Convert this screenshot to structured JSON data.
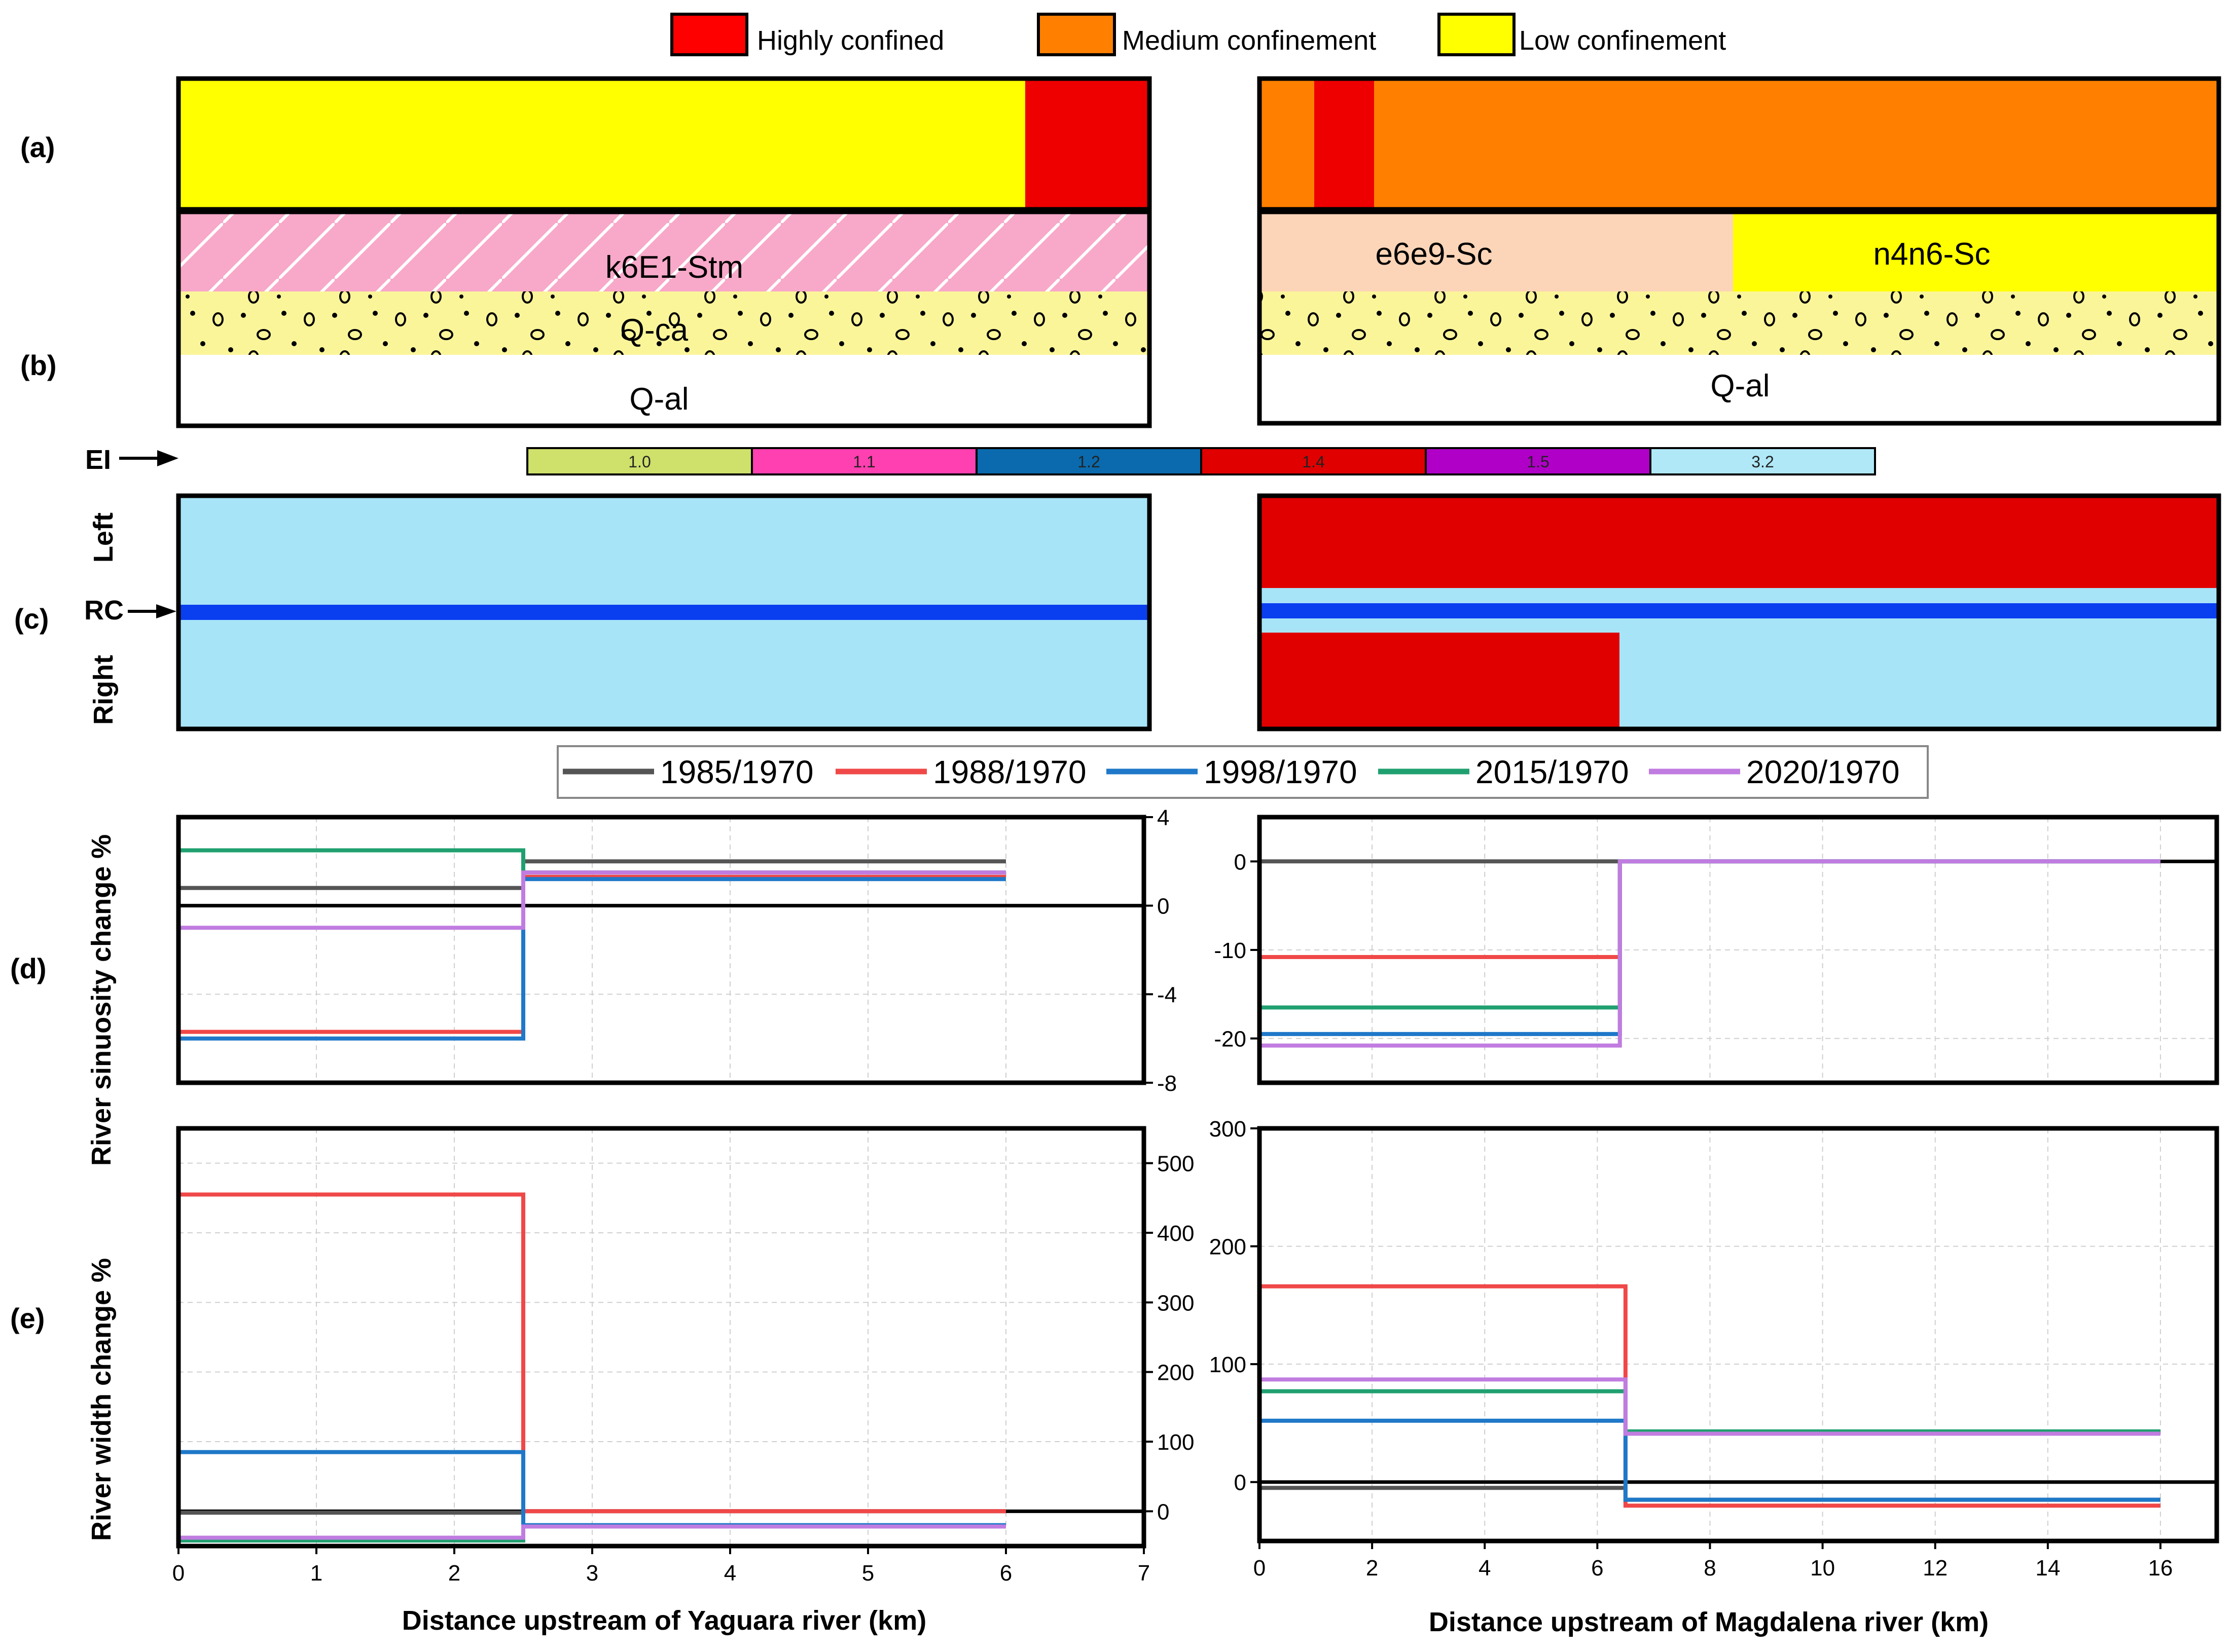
{
  "legend_top": {
    "items": [
      {
        "label": "Highly confined",
        "color": "#ff0000"
      },
      {
        "label": "Medium confinement",
        "color": "#ff8000"
      },
      {
        "label": "Low confinement",
        "color": "#ffff00"
      }
    ]
  },
  "panel_labels": {
    "a": "(a)",
    "b": "(b)",
    "c": "(c)",
    "d": "(d)",
    "e": "(e)"
  },
  "geology": {
    "left": {
      "upper": "k6E1-Stm",
      "middle": "Q-ca",
      "lower": "Q-al"
    },
    "right": {
      "upper_a": "e6e9-Sc",
      "upper_b": "n4n6-Sc",
      "lower": "Q-al"
    }
  },
  "ei": {
    "label": "EI",
    "items": [
      {
        "value": "1.0",
        "color": "#cfe06b"
      },
      {
        "value": "1.1",
        "color": "#ff40b0"
      },
      {
        "value": "1.2",
        "color": "#0a6aad"
      },
      {
        "value": "1.4",
        "color": "#e00000"
      },
      {
        "value": "1.5",
        "color": "#b000c8"
      },
      {
        "value": "3.2",
        "color": "#b0e8f8"
      }
    ]
  },
  "rc": {
    "label": "RC",
    "left": "Left",
    "right": "Right"
  },
  "colors": {
    "highly": "#ee0000",
    "medium": "#ff8000",
    "low": "#ffff00",
    "pink": "#f8a8c8",
    "sandy": "#fbf59a",
    "peach": "#fcd5b8",
    "lightblue": "#a8e4f8",
    "rcblue": "#0a3ff0",
    "rcred": "#e00000"
  },
  "series_legend": [
    {
      "name": "1985/1970",
      "color": "#555555"
    },
    {
      "name": "1988/1970",
      "color": "#f04848"
    },
    {
      "name": "1998/1970",
      "color": "#1f78c8"
    },
    {
      "name": "2015/1970",
      "color": "#20a070"
    },
    {
      "name": "2020/1970",
      "color": "#c07ce0"
    }
  ],
  "axis_titles": {
    "sinuosity": "River sinuosity change %",
    "width": "River width change %",
    "x_left": "Distance upstream of Yaguara river (km)",
    "x_right": "Distance upstream of Magdalena river (km)"
  },
  "chart_data": [
    {
      "id": "d-left",
      "type": "line",
      "step": true,
      "xlim": [
        0,
        7
      ],
      "ylim": [
        -8,
        4
      ],
      "yticks": [
        -8,
        -4,
        0,
        4
      ],
      "xticks": [],
      "series": [
        {
          "name": "1985/1970",
          "x": [
            0,
            2.5,
            2.5,
            6
          ],
          "y": [
            0.8,
            0.8,
            2,
            2
          ]
        },
        {
          "name": "1988/1970",
          "x": [
            0,
            2.5,
            2.5,
            6
          ],
          "y": [
            -5.7,
            -5.7,
            1.3,
            1.3
          ]
        },
        {
          "name": "1998/1970",
          "x": [
            0,
            2.5,
            2.5,
            6
          ],
          "y": [
            -6,
            -6,
            1.2,
            1.2
          ]
        },
        {
          "name": "2015/1970",
          "x": [
            0,
            2.5,
            2.5,
            6
          ],
          "y": [
            2.5,
            2.5,
            1.5,
            1.5
          ]
        },
        {
          "name": "2020/1970",
          "x": [
            0,
            2.5,
            2.5,
            6
          ],
          "y": [
            -1,
            -1,
            1.5,
            1.5
          ]
        }
      ]
    },
    {
      "id": "d-right",
      "type": "line",
      "step": true,
      "xlim": [
        0,
        17
      ],
      "ylim": [
        -25,
        5
      ],
      "yticks": [
        -20,
        -10,
        0
      ],
      "xticks": [],
      "series": [
        {
          "name": "1985/1970",
          "x": [
            0,
            16
          ],
          "y": [
            0,
            0
          ]
        },
        {
          "name": "1988/1970",
          "x": [
            0,
            6.4,
            6.4,
            16
          ],
          "y": [
            -10.8,
            -10.8,
            0,
            0
          ]
        },
        {
          "name": "1998/1970",
          "x": [
            0,
            6.4,
            6.4,
            16
          ],
          "y": [
            -19.5,
            -19.5,
            0,
            0
          ]
        },
        {
          "name": "2015/1970",
          "x": [
            0,
            6.4,
            6.4,
            16
          ],
          "y": [
            -16.5,
            -16.5,
            0,
            0
          ]
        },
        {
          "name": "2020/1970",
          "x": [
            0,
            6.4,
            6.4,
            16
          ],
          "y": [
            -20.8,
            -20.8,
            0,
            0
          ]
        }
      ]
    },
    {
      "id": "e-left",
      "type": "line",
      "step": true,
      "xlim": [
        0,
        7
      ],
      "ylim": [
        -50,
        550
      ],
      "yticks": [
        0,
        100,
        200,
        300,
        400,
        500
      ],
      "xticks": [
        0,
        1,
        2,
        3,
        4,
        5,
        6,
        7
      ],
      "series": [
        {
          "name": "1985/1970",
          "x": [
            0,
            2.5,
            2.5,
            6
          ],
          "y": [
            -2,
            -2,
            0,
            0
          ]
        },
        {
          "name": "1988/1970",
          "x": [
            0,
            2.5,
            2.5,
            6
          ],
          "y": [
            455,
            455,
            0,
            0
          ]
        },
        {
          "name": "1998/1970",
          "x": [
            0,
            2.5,
            2.5,
            6
          ],
          "y": [
            85,
            85,
            -20,
            -20
          ]
        },
        {
          "name": "2015/1970",
          "x": [
            0,
            2.5,
            2.5,
            6
          ],
          "y": [
            -42,
            -42,
            -22,
            -22
          ]
        },
        {
          "name": "2020/1970",
          "x": [
            0,
            2.5,
            2.5,
            6
          ],
          "y": [
            -38,
            -38,
            -22,
            -22
          ]
        }
      ]
    },
    {
      "id": "e-right",
      "type": "line",
      "step": true,
      "xlim": [
        0,
        17
      ],
      "ylim": [
        -50,
        300
      ],
      "yticks": [
        0,
        100,
        200,
        300
      ],
      "xticks": [
        0,
        2,
        4,
        6,
        8,
        10,
        12,
        14,
        16
      ],
      "series": [
        {
          "name": "1985/1970",
          "x": [
            0,
            6.5,
            6.5,
            16
          ],
          "y": [
            -5,
            -5,
            -15,
            -15
          ]
        },
        {
          "name": "1988/1970",
          "x": [
            0,
            6.5,
            6.5,
            16
          ],
          "y": [
            166,
            166,
            -20,
            -20
          ]
        },
        {
          "name": "1998/1970",
          "x": [
            0,
            6.5,
            6.5,
            16
          ],
          "y": [
            52,
            52,
            -15,
            -15
          ]
        },
        {
          "name": "2015/1970",
          "x": [
            0,
            6.5,
            6.5,
            16
          ],
          "y": [
            77,
            77,
            43,
            43
          ]
        },
        {
          "name": "2020/1970",
          "x": [
            0,
            6.5,
            6.5,
            16
          ],
          "y": [
            87,
            87,
            41,
            41
          ]
        }
      ]
    }
  ]
}
